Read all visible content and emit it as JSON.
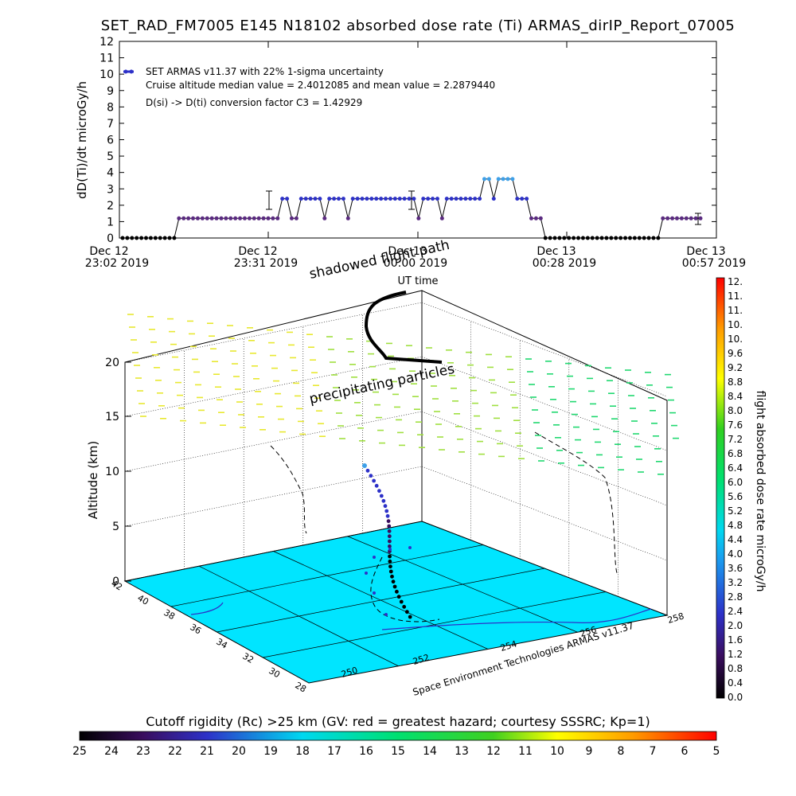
{
  "title": "SET_RAD_FM7005  E145 N18102 absorbed dose rate (Ti) ARMAS_dirIP_Report_07005",
  "chart_data": [
    {
      "type": "line",
      "ylabel": "dD(Ti)/dt microGy/h",
      "xlabel": "UT time",
      "ylim": [
        0,
        12
      ],
      "yticks": [
        "0",
        "1",
        "2",
        "3",
        "4",
        "5",
        "6",
        "7",
        "8",
        "9",
        "10",
        "11",
        "12"
      ],
      "xticks": [
        {
          "date": "Dec 12",
          "time": "23:02 2019"
        },
        {
          "date": "Dec 12",
          "time": "23:31 2019"
        },
        {
          "date": "Dec 13",
          "time": "00:00 2019"
        },
        {
          "date": "Dec 13",
          "time": "00:28 2019"
        },
        {
          "date": "Dec 13",
          "time": "00:57 2019"
        }
      ],
      "legend": "SET ARMAS v11.37 with 22% 1-sigma uncertainty",
      "annotations": [
        "Cruise altitude median value = 2.4012085 and mean value = 2.2879440",
        "D(si) -> D(ti) conversion factor C3 = 1.42929"
      ],
      "series": [
        {
          "values": [
            0,
            0,
            0,
            0,
            0,
            0,
            0,
            0,
            0,
            0,
            0,
            0,
            1.2,
            1.2,
            1.2,
            1.2,
            1.2,
            1.2,
            1.2,
            1.2,
            1.2,
            1.2,
            1.2,
            1.2,
            1.2,
            1.2,
            1.2,
            1.2,
            1.2,
            1.2,
            1.2,
            1.2,
            1.2,
            1.2,
            2.4,
            2.4,
            1.2,
            1.2,
            2.4,
            2.4,
            2.4,
            2.4,
            2.4,
            1.2,
            2.4,
            2.4,
            2.4,
            2.4,
            1.2,
            2.4,
            2.4,
            2.4,
            2.4,
            2.4,
            2.4,
            2.4,
            2.4,
            2.4,
            2.4,
            2.4,
            2.4,
            2.4,
            2.4,
            1.2,
            2.4,
            2.4,
            2.4,
            2.4,
            1.2,
            2.4,
            2.4,
            2.4,
            2.4,
            2.4,
            2.4,
            2.4,
            2.4,
            3.6,
            3.6,
            2.4,
            3.6,
            3.6,
            3.6,
            3.6,
            2.4,
            2.4,
            2.4,
            1.2,
            1.2,
            1.2,
            0,
            0,
            0,
            0,
            0,
            0,
            0,
            0,
            0,
            0,
            0,
            0,
            0,
            0,
            0,
            0,
            0,
            0,
            0,
            0,
            0,
            0,
            0,
            0,
            0,
            1.2,
            1.2,
            1.2,
            1.2,
            1.2,
            1.2,
            1.2,
            1.2,
            1.2
          ]
        }
      ]
    },
    {
      "type": "scatter",
      "ylabel": "Altitude (km)",
      "zticks": [
        "0",
        "5",
        "10",
        "15",
        "20"
      ],
      "lat_ticks": [
        "42",
        "40",
        "38",
        "36",
        "34",
        "32",
        "30",
        "28"
      ],
      "lon_ticks": [
        "250",
        "252",
        "254",
        "256",
        "258"
      ],
      "annotations": [
        "shadowed flight path",
        "precipitating particles"
      ],
      "credit": "Space Environment Technologies ARMAS v11.37",
      "colorbar_label": "flight absorbed dose rate microGy/h",
      "colorbar_ticks": [
        "0.0",
        "0.4",
        "0.8",
        "1.2",
        "1.6",
        "2.0",
        "2.4",
        "2.8",
        "3.2",
        "3.6",
        "4.0",
        "4.4",
        "4.8",
        "5.2",
        "5.6",
        "6.0",
        "6.4",
        "6.8",
        "7.2",
        "7.6",
        "8.0",
        "8.4",
        "8.8",
        "9.2",
        "9.6",
        "10.",
        "10.",
        "11.",
        "11.",
        "12."
      ],
      "rc_title": "Cutoff rigidity (Rc) >25 km (GV: red = greatest hazard; courtesy SSSRC; Kp=1)",
      "rc_ticks": [
        "25",
        "24",
        "23",
        "22",
        "21",
        "20",
        "19",
        "18",
        "17",
        "16",
        "15",
        "14",
        "13",
        "12",
        "11",
        "10",
        "9",
        "8",
        "7",
        "6",
        "5"
      ]
    }
  ],
  "colors": {
    "dose_low": "#5a2a80",
    "dose_mid": "#2d31c8",
    "dose_high": "#3ea0e8",
    "ground": "#00e5ff",
    "line": "#000000"
  }
}
